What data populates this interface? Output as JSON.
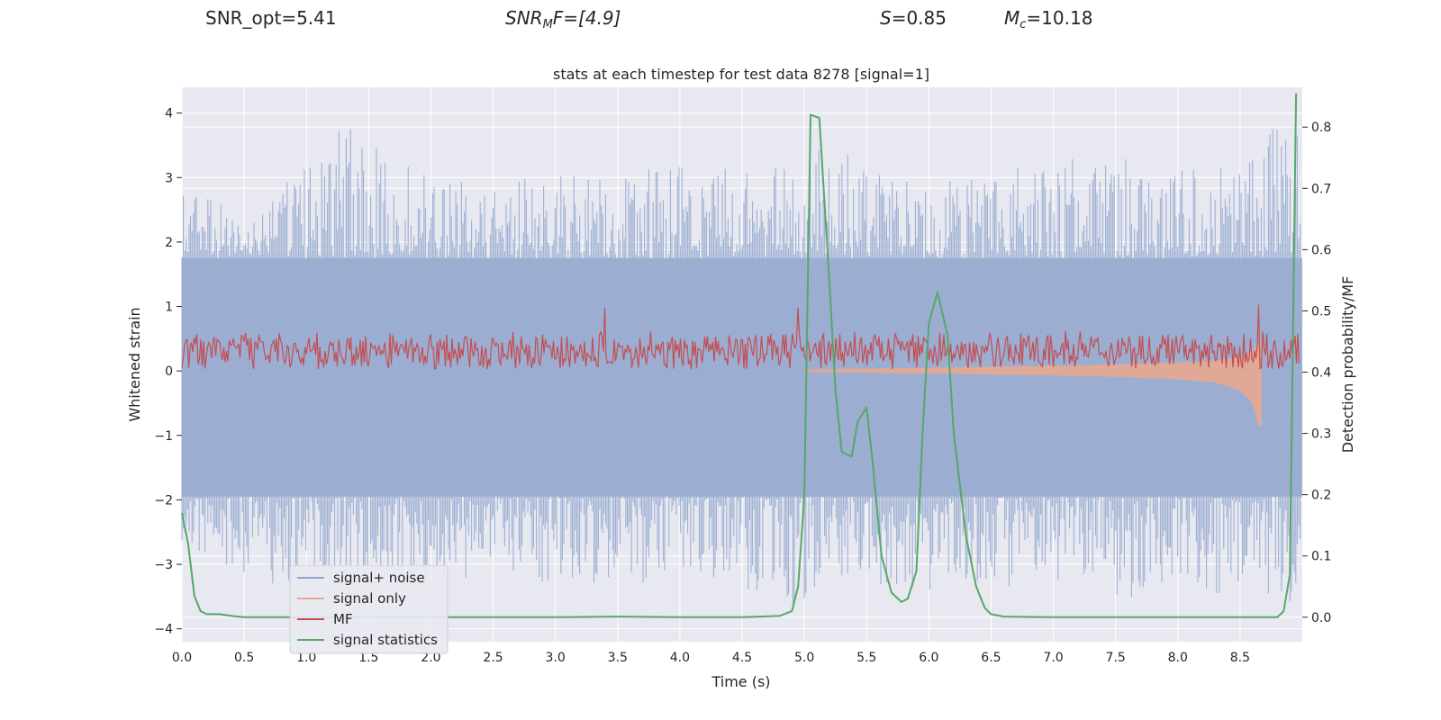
{
  "header": {
    "snr_opt_text": "SNR_opt=5.41",
    "snr_mf_main": "SNR",
    "snr_mf_sub": "M",
    "snr_mf_rest": "F=[4.9]",
    "s_symbol": "S",
    "s_rest": "=0.85",
    "mc_symbol": "M",
    "mc_sub": "c",
    "mc_rest": "=10.18"
  },
  "chart_data": {
    "type": "line",
    "title": "stats at each timestep for test data 8278 [signal=1]",
    "xlabel": "Time (s)",
    "ylabel_left": "Whitened strain",
    "ylabel_right": "Detection probability/MF",
    "xlim": [
      0.0,
      9.0
    ],
    "ylim_left": [
      -4.2,
      4.4
    ],
    "ylim_right": [
      -0.04,
      0.865
    ],
    "x_ticks": [
      0.0,
      0.5,
      1.0,
      1.5,
      2.0,
      2.5,
      3.0,
      3.5,
      4.0,
      4.5,
      5.0,
      5.5,
      6.0,
      6.5,
      7.0,
      7.5,
      8.0,
      8.5
    ],
    "x_tick_labels": [
      "0.0",
      "0.5",
      "1.0",
      "1.5",
      "2.0",
      "2.5",
      "3.0",
      "3.5",
      "4.0",
      "4.5",
      "5.0",
      "5.5",
      "6.0",
      "6.5",
      "7.0",
      "7.5",
      "8.0",
      "8.5"
    ],
    "y_ticks_left": [
      -4,
      -3,
      -2,
      -1,
      0,
      1,
      2,
      3,
      4
    ],
    "y_tick_labels_left": [
      "−4",
      "−3",
      "−2",
      "−1",
      "0",
      "1",
      "2",
      "3",
      "4"
    ],
    "y_ticks_right": [
      0.0,
      0.1,
      0.2,
      0.3,
      0.4,
      0.5,
      0.6,
      0.7,
      0.8
    ],
    "y_tick_labels_right": [
      "0.0",
      "0.1",
      "0.2",
      "0.3",
      "0.4",
      "0.5",
      "0.6",
      "0.7",
      "0.8"
    ],
    "legend": {
      "location": "lower-left",
      "entries": [
        {
          "label": "signal+ noise",
          "color": "#8fa5d0"
        },
        {
          "label": "signal only",
          "color": "#e8a88e"
        },
        {
          "label": "MF",
          "color": "#c44e52"
        },
        {
          "label": "signal statistics",
          "color": "#55a868"
        }
      ]
    },
    "series": [
      {
        "name": "signal+ noise",
        "axis": "left",
        "color": "#9aadd1",
        "style": "dense noise envelope",
        "envelope": {
          "t": [
            0.0,
            0.5,
            1.0,
            1.25,
            1.5,
            2.0,
            2.5,
            3.0,
            3.5,
            4.0,
            4.5,
            5.0,
            5.1,
            5.5,
            6.0,
            6.5,
            7.0,
            7.5,
            8.0,
            8.5,
            8.9
          ],
          "upper": [
            2.9,
            2.4,
            3.2,
            4.0,
            3.6,
            3.0,
            2.9,
            3.1,
            3.1,
            3.2,
            3.2,
            3.1,
            3.8,
            3.2,
            2.9,
            3.1,
            3.3,
            3.3,
            3.2,
            3.3,
            4.0
          ],
          "lower": [
            -2.8,
            -3.2,
            -3.5,
            -3.4,
            -3.5,
            -3.4,
            -3.2,
            -3.3,
            -3.3,
            -3.4,
            -3.4,
            -3.8,
            -3.3,
            -3.3,
            -3.4,
            -3.4,
            -3.3,
            -3.6,
            -3.4,
            -3.5,
            -3.7
          ],
          "core_upper": 1.75,
          "core_lower": -1.95
        }
      },
      {
        "name": "signal only",
        "axis": "left",
        "color": "#e8a88e",
        "t": [
          5.0,
          6.0,
          7.0,
          7.5,
          8.0,
          8.3,
          8.5,
          8.6,
          8.65,
          8.67
        ],
        "upper": [
          0.02,
          0.05,
          0.08,
          0.1,
          0.13,
          0.16,
          0.22,
          0.3,
          0.42,
          0.45
        ],
        "lower": [
          -0.02,
          -0.04,
          -0.07,
          -0.09,
          -0.13,
          -0.18,
          -0.3,
          -0.5,
          -0.85,
          -0.85
        ]
      },
      {
        "name": "MF",
        "axis": "right",
        "color": "#c44e52",
        "style": "noisy band",
        "band_low": 0.405,
        "band_mid": 0.44,
        "band_high": 0.47,
        "spikes": [
          {
            "t": 3.4,
            "y": 0.505
          },
          {
            "t": 4.95,
            "y": 0.505
          },
          {
            "t": 8.65,
            "y": 0.51
          }
        ]
      },
      {
        "name": "signal statistics",
        "axis": "right",
        "color": "#55a868",
        "x": [
          0.0,
          0.05,
          0.1,
          0.15,
          0.2,
          0.3,
          0.4,
          0.5,
          1.0,
          2.0,
          3.0,
          3.5,
          4.0,
          4.5,
          4.8,
          4.9,
          4.95,
          5.0,
          5.05,
          5.12,
          5.2,
          5.25,
          5.3,
          5.38,
          5.43,
          5.5,
          5.55,
          5.62,
          5.7,
          5.78,
          5.83,
          5.9,
          5.95,
          6.0,
          6.07,
          6.15,
          6.2,
          6.3,
          6.38,
          6.45,
          6.5,
          6.6,
          7.0,
          8.0,
          8.5,
          8.8,
          8.85,
          8.9,
          8.95
        ],
        "y": [
          0.17,
          0.12,
          0.035,
          0.01,
          0.005,
          0.005,
          0.002,
          0.0,
          0.0,
          0.0,
          0.0,
          0.001,
          0.0,
          0.0,
          0.002,
          0.01,
          0.05,
          0.2,
          0.82,
          0.815,
          0.55,
          0.37,
          0.27,
          0.262,
          0.32,
          0.342,
          0.25,
          0.1,
          0.04,
          0.025,
          0.03,
          0.075,
          0.3,
          0.48,
          0.53,
          0.46,
          0.3,
          0.13,
          0.05,
          0.015,
          0.005,
          0.001,
          0.0,
          0.0,
          0.0,
          0.0,
          0.01,
          0.07,
          0.855
        ]
      }
    ]
  }
}
